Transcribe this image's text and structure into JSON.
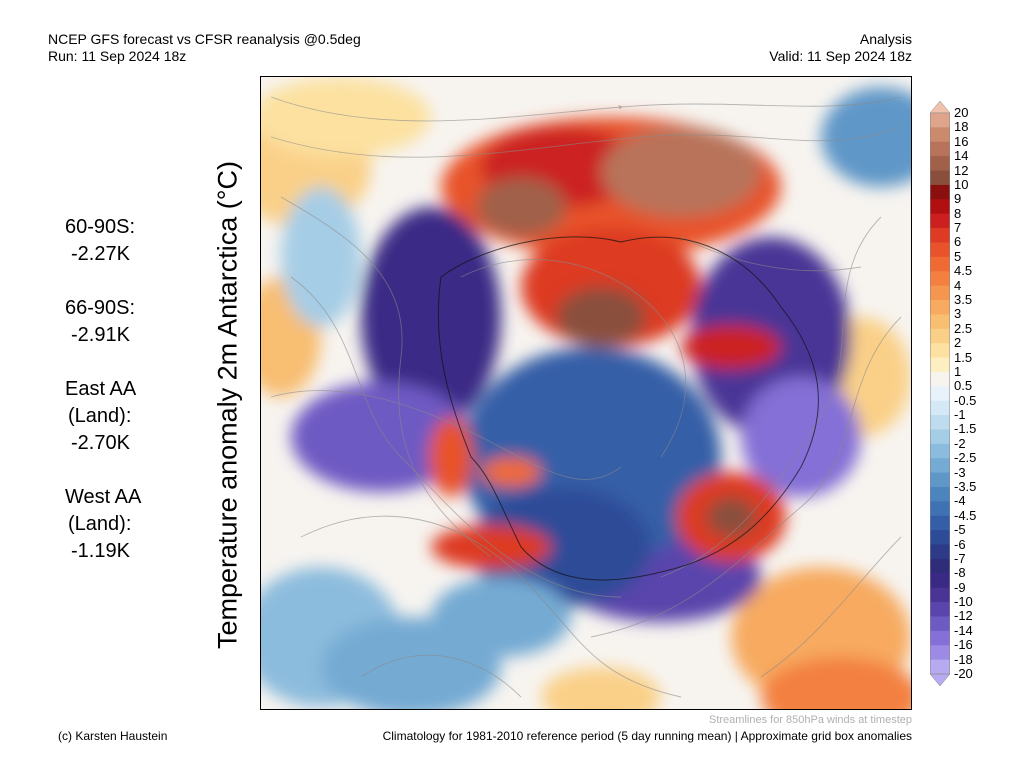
{
  "header": {
    "title_line1": "NCEP GFS forecast vs CFSR reanalysis @0.5deg",
    "title_line2": "Run: 11 Sep 2024 18z",
    "right_line1": "Analysis",
    "right_line2": "Valid: 11 Sep 2024 18z"
  },
  "stats": [
    {
      "label": "60-90S:",
      "value": "-2.27K"
    },
    {
      "label": "66-90S:",
      "value": "-2.91K"
    },
    {
      "label": "East AA",
      "label2": "(Land):",
      "value": "-2.70K"
    },
    {
      "label": "West AA",
      "label2": "(Land):",
      "value": "-1.19K"
    }
  ],
  "ylabel": "Temperature anomaly 2m Antarctica (°C)",
  "colorbar": {
    "labels": [
      "20",
      "18",
      "16",
      "14",
      "12",
      "10",
      "9",
      "8",
      "7",
      "6",
      "5",
      "4.5",
      "4",
      "3.5",
      "3",
      "2.5",
      "2",
      "1.5",
      "1",
      "0.5",
      "-0.5",
      "-1",
      "-1.5",
      "-2",
      "-2.5",
      "-3",
      "-3.5",
      "-4",
      "-4.5",
      "-5",
      "-6",
      "-7",
      "-8",
      "-9",
      "-10",
      "-12",
      "-14",
      "-16",
      "-18",
      "-20"
    ],
    "colors": [
      "#f0c2ac",
      "#dea58c",
      "#cc8a6c",
      "#b8735a",
      "#a0604a",
      "#8a4f3c",
      "#8a1010",
      "#b01010",
      "#cc2020",
      "#dd3b24",
      "#e8532c",
      "#f06a34",
      "#f38040",
      "#f59650",
      "#f7aa60",
      "#f8be72",
      "#fad088",
      "#fce1a0",
      "#fdefc2",
      "#f7f4f0",
      "#e8f2fa",
      "#d5e8f5",
      "#bfdcee",
      "#a6cde6",
      "#8cbcdd",
      "#74aad3",
      "#5f97c8",
      "#4c84be",
      "#3e72b3",
      "#345ea7",
      "#2e4b98",
      "#2c3a88",
      "#2f2c7a",
      "#3a2a86",
      "#4a3596",
      "#5a45ac",
      "#6e5ac3",
      "#8470d6",
      "#9c8ae4",
      "#b8aaf0"
    ]
  },
  "footer": {
    "credit": "(c) Karsten Haustein",
    "note": "Climatology for 1981-2010 reference period (5 day running mean) | Approximate grid box anomalies",
    "streamlines": "Streamlines for 850hPa winds at timestep"
  }
}
